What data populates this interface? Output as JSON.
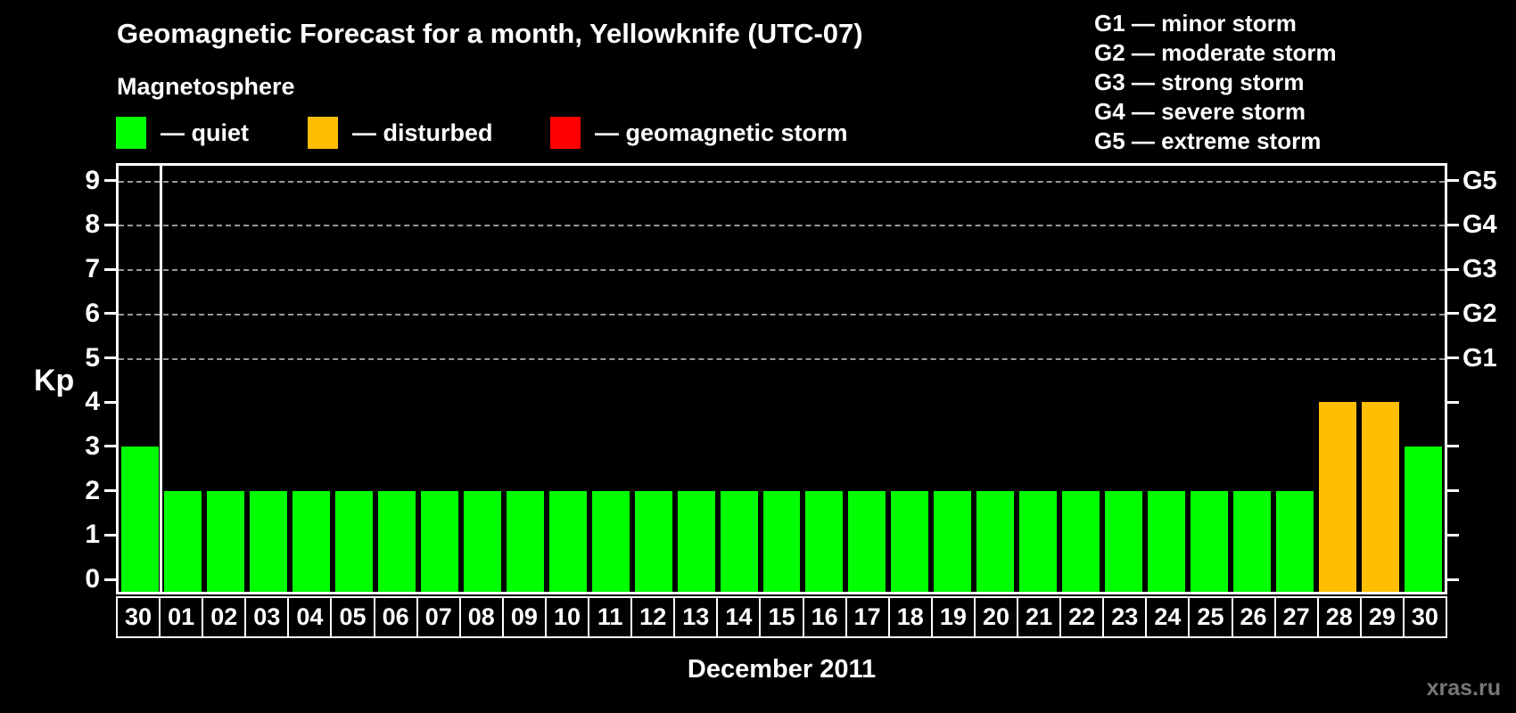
{
  "title": "Geomagnetic Forecast for a month, Yellowknife (UTC-07)",
  "subtitle": "Magnetosphere",
  "legend": {
    "items": [
      {
        "name": "quiet",
        "label": "— quiet",
        "color": "#00ff00",
        "x": 130
      },
      {
        "name": "disturbed",
        "label": "— disturbed",
        "color": "#ffbe00",
        "x": 345
      },
      {
        "name": "geomagnetic-storm",
        "label": "— geomagnetic storm",
        "color": "#ff0000",
        "x": 617
      }
    ]
  },
  "g_scale_legend": [
    "G1 — minor storm",
    "G2 — moderate storm",
    "G3 — strong storm",
    "G4 — severe storm",
    "G5 — extreme storm"
  ],
  "watermark": "xras.ru",
  "colors": {
    "background": "#000000",
    "text": "#ffffff",
    "quiet": "#00ff00",
    "disturbed": "#ffbe00",
    "storm": "#ff0000",
    "gridline": "#999999",
    "watermark": "#777777"
  },
  "chart_data": {
    "type": "bar",
    "title": "Geomagnetic Forecast for a month, Yellowknife (UTC-07)",
    "xlabel": "December 2011",
    "ylabel": "Kp",
    "categories": [
      "30",
      "01",
      "02",
      "03",
      "04",
      "05",
      "06",
      "07",
      "08",
      "09",
      "10",
      "11",
      "12",
      "13",
      "14",
      "15",
      "16",
      "17",
      "18",
      "19",
      "20",
      "21",
      "22",
      "23",
      "24",
      "25",
      "26",
      "27",
      "28",
      "29",
      "30"
    ],
    "values": [
      3,
      2,
      2,
      2,
      2,
      2,
      2,
      2,
      2,
      2,
      2,
      2,
      2,
      2,
      2,
      2,
      2,
      2,
      2,
      2,
      2,
      2,
      2,
      2,
      2,
      2,
      2,
      2,
      4,
      4,
      3
    ],
    "first_category_is_previous_month": true,
    "ylim": [
      0,
      9.7
    ],
    "y_ticks": [
      0,
      1,
      2,
      3,
      4,
      5,
      6,
      7,
      8,
      9
    ],
    "gridlines_at_kp": [
      5,
      6,
      7,
      8,
      9
    ],
    "right_axis_labels": [
      {
        "kp": 5,
        "text": "G1"
      },
      {
        "kp": 6,
        "text": "G2"
      },
      {
        "kp": 7,
        "text": "G3"
      },
      {
        "kp": 8,
        "text": "G4"
      },
      {
        "kp": 9,
        "text": "G5"
      }
    ],
    "color_rules": {
      "quiet_max_kp": 3,
      "disturbed_kp": 4,
      "storm_min_kp": 5
    },
    "legend_position": "top-left",
    "grid": "dashed horizontal at G-levels only"
  }
}
